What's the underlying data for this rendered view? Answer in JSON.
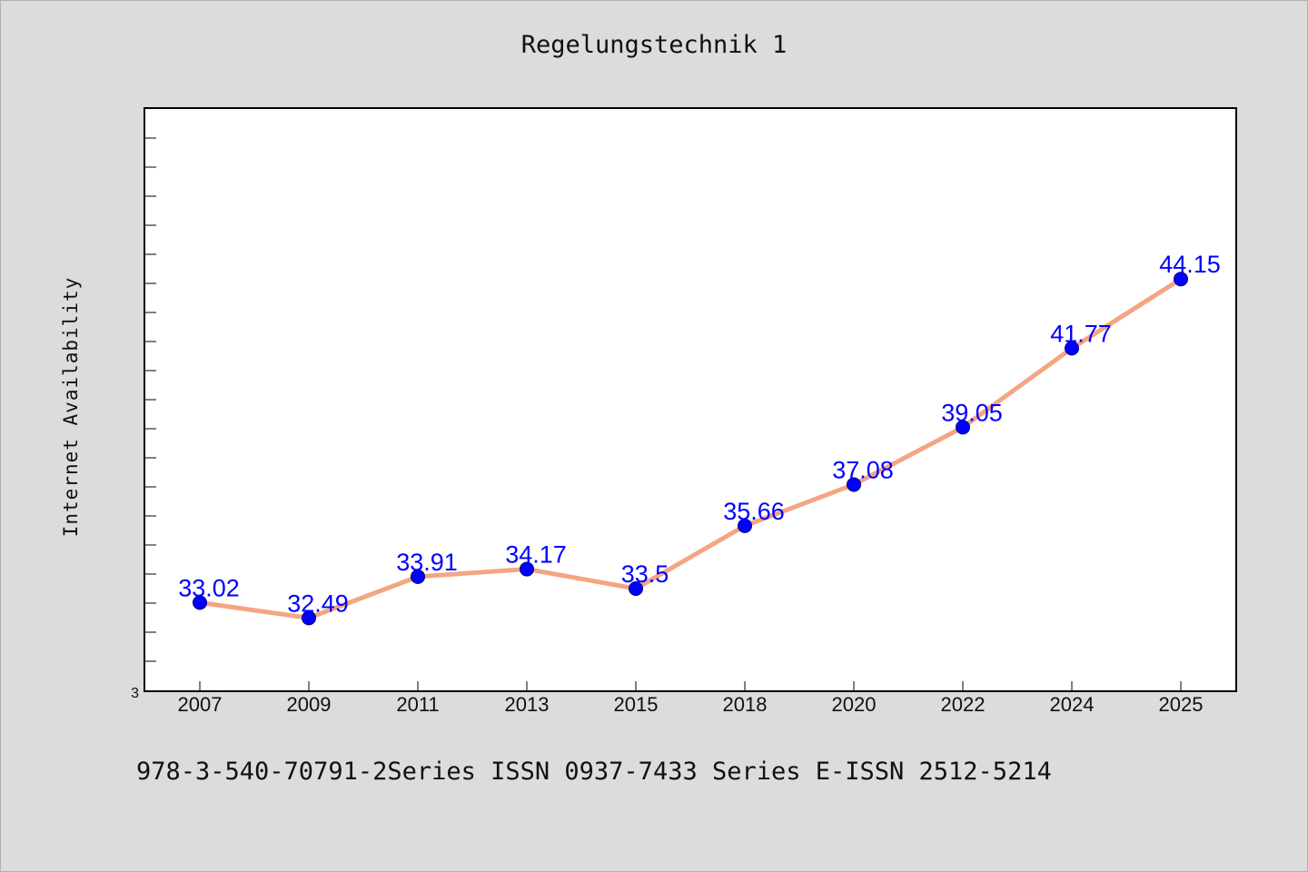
{
  "chart_data": {
    "type": "line",
    "title": "Regelungstechnik 1",
    "ylabel": "Internet Availability",
    "xlabel": "",
    "categories": [
      "2007",
      "2009",
      "2011",
      "2013",
      "2015",
      "2018",
      "2020",
      "2022",
      "2024",
      "2025"
    ],
    "series": [
      {
        "values": [
          33.02,
          32.49,
          33.91,
          34.17,
          33.5,
          35.66,
          37.08,
          39.05,
          41.77,
          44.15
        ],
        "labels": [
          "33.02",
          "32.49",
          "33.91",
          "34.17",
          "33.5",
          "35.66",
          "37.08",
          "39.05",
          "41.77",
          "44.15"
        ]
      }
    ],
    "y_tick_label": "3",
    "ylim": [
      30,
      50
    ],
    "grid": false,
    "colors": {
      "line": "#f4a582",
      "marker": "#0000ff",
      "label": "#0000ff"
    }
  },
  "footer": {
    "text": "978-3-540-70791-2Series ISSN 0937-7433 Series E-ISSN 2512-5214"
  }
}
